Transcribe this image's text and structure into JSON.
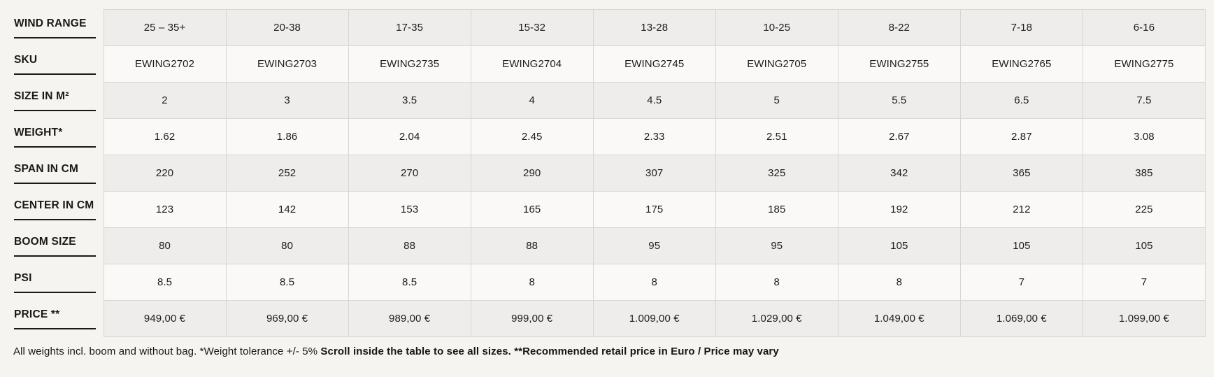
{
  "table": {
    "rows": [
      {
        "key": "wind-range",
        "label": "WIND RANGE",
        "values": [
          "25 – 35+",
          "20-38",
          "17-35",
          "15-32",
          "13-28",
          "10-25",
          "8-22",
          "7-18",
          "6-16"
        ]
      },
      {
        "key": "sku",
        "label": "SKU",
        "values": [
          "EWING2702",
          "EWING2703",
          "EWING2735",
          "EWING2704",
          "EWING2745",
          "EWING2705",
          "EWING2755",
          "EWING2765",
          "EWING2775"
        ]
      },
      {
        "key": "size-in-m2",
        "label": "SIZE IN M²",
        "values": [
          "2",
          "3",
          "3.5",
          "4",
          "4.5",
          "5",
          "5.5",
          "6.5",
          "7.5"
        ]
      },
      {
        "key": "weight",
        "label": "WEIGHT*",
        "values": [
          "1.62",
          "1.86",
          "2.04",
          "2.45",
          "2.33",
          "2.51",
          "2.67",
          "2.87",
          "3.08"
        ]
      },
      {
        "key": "span-in-cm",
        "label": "SPAN IN CM",
        "values": [
          "220",
          "252",
          "270",
          "290",
          "307",
          "325",
          "342",
          "365",
          "385"
        ]
      },
      {
        "key": "center-in-cm",
        "label": "CENTER IN CM",
        "values": [
          "123",
          "142",
          "153",
          "165",
          "175",
          "185",
          "192",
          "212",
          "225"
        ]
      },
      {
        "key": "boom-size",
        "label": "BOOM SIZE",
        "values": [
          "80",
          "80",
          "88",
          "88",
          "95",
          "95",
          "105",
          "105",
          "105"
        ]
      },
      {
        "key": "psi",
        "label": "PSI",
        "values": [
          "8.5",
          "8.5",
          "8.5",
          "8",
          "8",
          "8",
          "8",
          "7",
          "7"
        ]
      },
      {
        "key": "price",
        "label": "PRICE **",
        "values": [
          "949,00 €",
          "969,00 €",
          "989,00 €",
          "999,00 €",
          "1.009,00 €",
          "1.029,00 €",
          "1.049,00 €",
          "1.069,00 €",
          "1.099,00 €"
        ]
      }
    ]
  },
  "footnote": {
    "regular": "All weights incl. boom and without bag. *Weight tolerance +/- 5% ",
    "bold_scroll": "Scroll inside the table to see all sizes. ",
    "bold_price": "**Recommended retail price in Euro / Price may vary"
  },
  "colors": {
    "page_bg": "#f5f4f1",
    "row_gray": "#eeedeb",
    "row_light": "#faf9f7",
    "cell_border": "#d7d6d2",
    "text": "#1d1d1b"
  }
}
